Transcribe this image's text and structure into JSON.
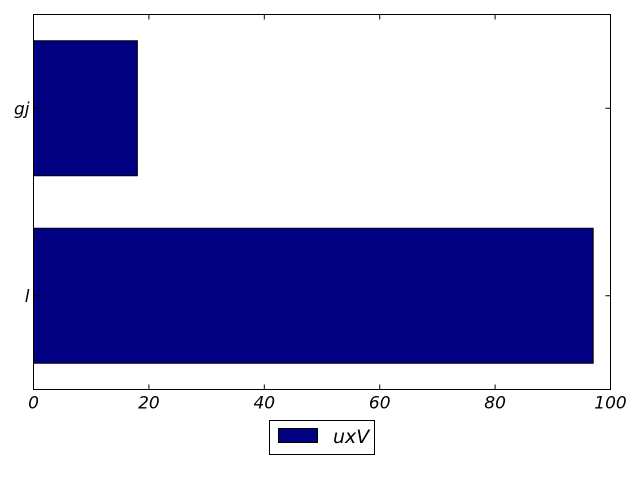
{
  "chart_data": {
    "type": "bar",
    "orientation": "horizontal",
    "categories": [
      "l",
      "gj"
    ],
    "series": [
      {
        "name": "uxV",
        "color": "#000080",
        "values": [
          97,
          18
        ]
      }
    ],
    "title": "",
    "xlabel": "",
    "ylabel": "",
    "xlim": [
      0,
      100
    ],
    "x_ticks": [
      0,
      20,
      40,
      60,
      80,
      100
    ],
    "x_tick_labels": [
      "0",
      "20",
      "40",
      "60",
      "80",
      "100"
    ],
    "grid": false,
    "legend": {
      "position": "bottom-center",
      "entries": [
        "uxV"
      ]
    }
  }
}
